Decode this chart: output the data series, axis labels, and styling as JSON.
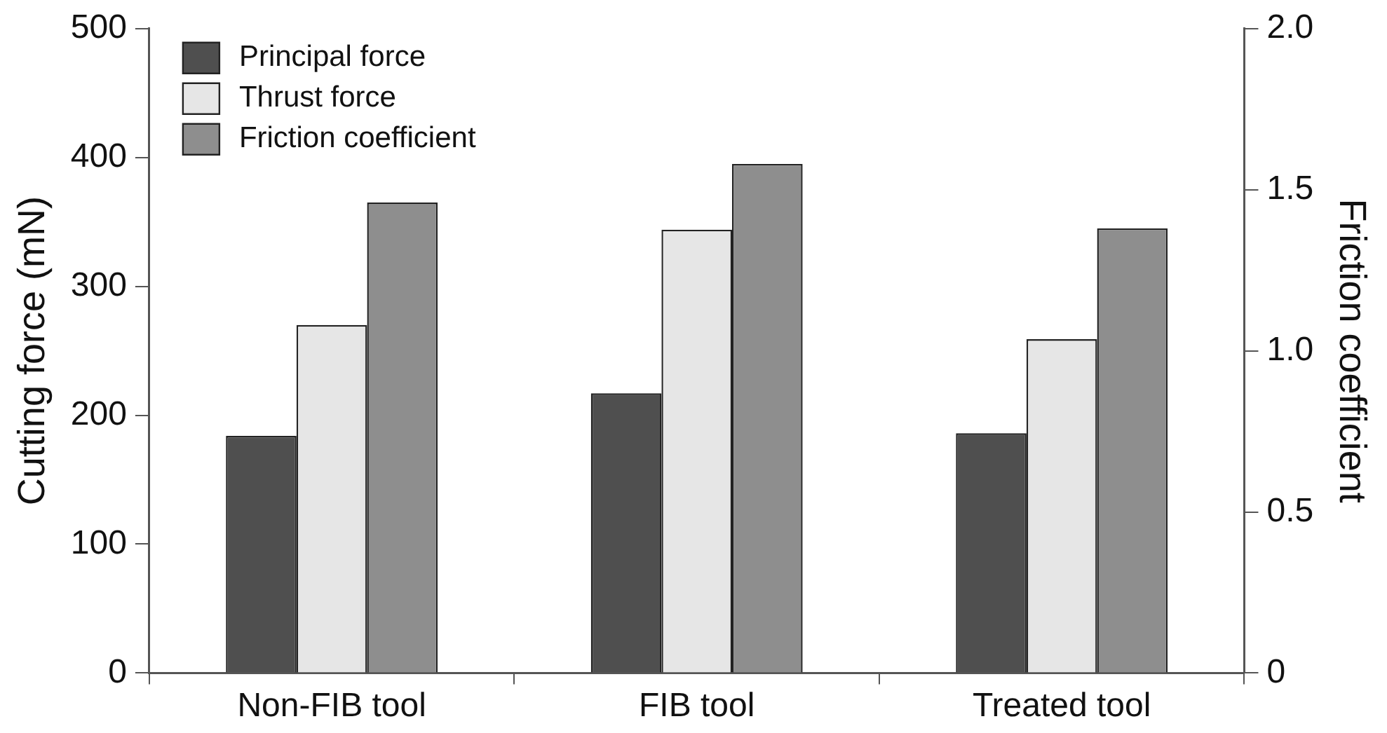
{
  "chart_data": {
    "type": "bar",
    "categories": [
      "Non-FIB tool",
      "FIB tool",
      "Treated tool"
    ],
    "ylabel": "Cutting force (mN)",
    "y2label": "Friction coefficient",
    "series": [
      {
        "name": "Principal force",
        "color": "#4f4f4f",
        "values": [
          184,
          217,
          186
        ]
      },
      {
        "name": "Thrust force",
        "color": "#e6e6e6",
        "values": [
          270,
          344,
          259
        ]
      },
      {
        "name": "Friction coefficient",
        "color": "#8e8e8e",
        "values": [
          1.46,
          1.58,
          1.38
        ],
        "axis": "y2"
      }
    ],
    "ylim": [
      0,
      500
    ],
    "yticks": [
      0,
      100,
      200,
      300,
      400,
      500
    ],
    "y2lim": [
      0,
      2
    ],
    "y2ticks": [
      0,
      0.5,
      {
        "value": 1,
        "label": "1.0"
      },
      1.5,
      {
        "value": 2,
        "label": "2.0"
      }
    ],
    "grid": false,
    "legend": "top left"
  }
}
